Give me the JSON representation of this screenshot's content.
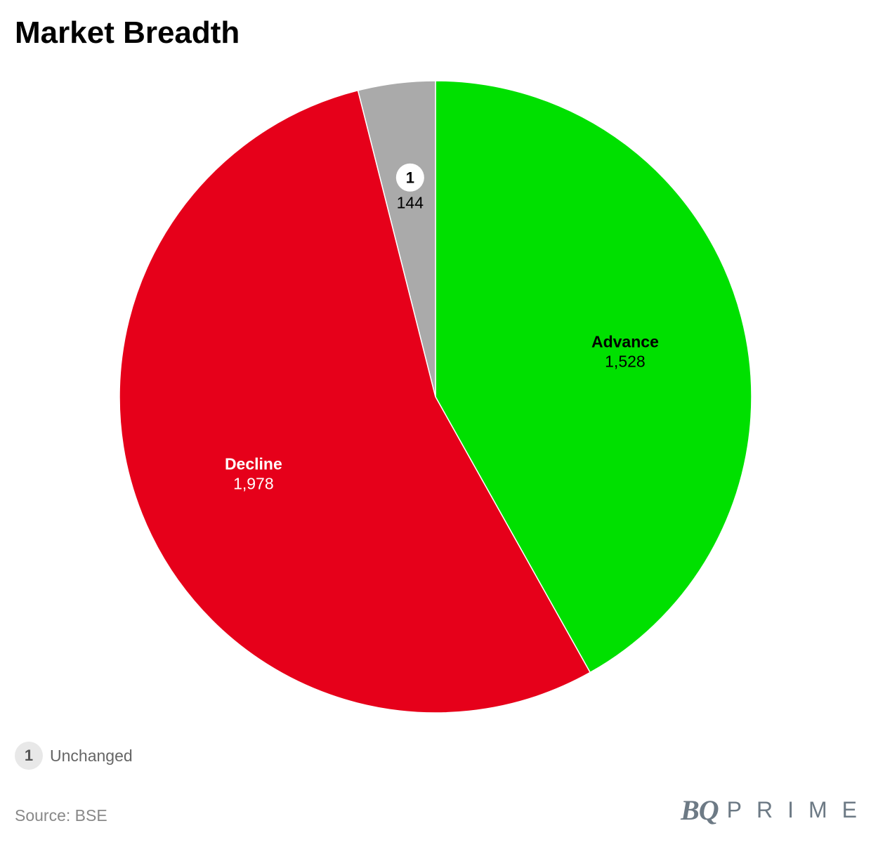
{
  "title": "Market Breadth",
  "chart_data": {
    "type": "pie",
    "title": "Market Breadth",
    "start_angle_deg": 0,
    "direction": "clockwise",
    "slices": [
      {
        "label": "Advance",
        "value": 1528,
        "value_label": "1,528",
        "color": "#00e000",
        "label_color": "#000000"
      },
      {
        "label": "Decline",
        "value": 1978,
        "value_label": "1,978",
        "color": "#e6001a",
        "label_color": "#ffffff"
      },
      {
        "label": "Unchanged",
        "value": 144,
        "value_label": "144",
        "color": "#aaaaaa",
        "label_color": "#000000",
        "marker": "1"
      }
    ]
  },
  "footnote": {
    "marker": "1",
    "text": "Unchanged"
  },
  "source": "Source: BSE",
  "brand": {
    "bq": "BQ",
    "prime": "PRIME"
  }
}
